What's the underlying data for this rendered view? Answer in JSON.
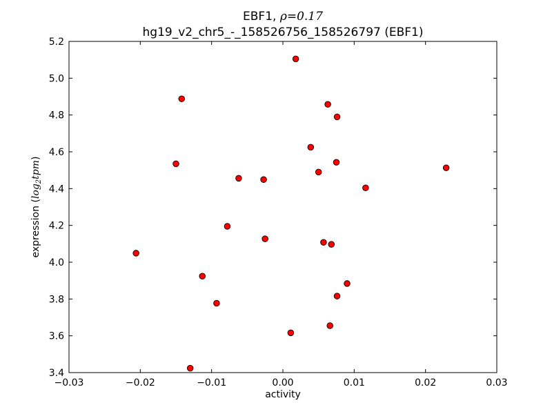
{
  "chart_data": {
    "type": "scatter",
    "title_prefix": "EBF1, ",
    "title_rho_symbol": "ρ",
    "title_rho_value": "=0.17",
    "subtitle": "hg19_v2_chr5_-_158526756_158526797 (EBF1)",
    "xlabel": "activity",
    "ylabel_text": "expression (",
    "ylabel_log": "log",
    "ylabel_sub": "2",
    "ylabel_tpm": "tpm",
    "ylabel_close": ")",
    "xlim": [
      -0.03,
      0.03
    ],
    "ylim": [
      3.4,
      5.2
    ],
    "xticks": [
      -0.03,
      -0.02,
      -0.01,
      0.0,
      0.01,
      0.02,
      0.03
    ],
    "xtick_labels": [
      "−0.03",
      "−0.02",
      "−0.01",
      "0.00",
      "0.01",
      "0.02",
      "0.03"
    ],
    "yticks": [
      3.4,
      3.6,
      3.8,
      4.0,
      4.2,
      4.4,
      4.6,
      4.8,
      5.0,
      5.2
    ],
    "ytick_labels": [
      "3.4",
      "3.6",
      "3.8",
      "4.0",
      "4.2",
      "4.4",
      "4.6",
      "4.8",
      "5.0",
      "5.2"
    ],
    "grid": false,
    "marker_color": "#ff0000",
    "marker_edge": "#000000",
    "points": [
      {
        "x": 0.0018,
        "y": 5.105
      },
      {
        "x": -0.0142,
        "y": 4.888
      },
      {
        "x": 0.0063,
        "y": 4.858
      },
      {
        "x": 0.0076,
        "y": 4.79
      },
      {
        "x": 0.0039,
        "y": 4.625
      },
      {
        "x": 0.0075,
        "y": 4.543
      },
      {
        "x": -0.015,
        "y": 4.535
      },
      {
        "x": 0.0229,
        "y": 4.513
      },
      {
        "x": 0.005,
        "y": 4.49
      },
      {
        "x": -0.0062,
        "y": 4.456
      },
      {
        "x": -0.0027,
        "y": 4.449
      },
      {
        "x": 0.0116,
        "y": 4.404
      },
      {
        "x": -0.0078,
        "y": 4.195
      },
      {
        "x": -0.0025,
        "y": 4.127
      },
      {
        "x": 0.0057,
        "y": 4.108
      },
      {
        "x": 0.0068,
        "y": 4.097
      },
      {
        "x": -0.0206,
        "y": 4.049
      },
      {
        "x": -0.0113,
        "y": 3.924
      },
      {
        "x": 0.009,
        "y": 3.884
      },
      {
        "x": 0.0076,
        "y": 3.816
      },
      {
        "x": -0.0093,
        "y": 3.777
      },
      {
        "x": 0.0066,
        "y": 3.655
      },
      {
        "x": 0.0011,
        "y": 3.616
      },
      {
        "x": -0.013,
        "y": 3.424
      }
    ]
  }
}
